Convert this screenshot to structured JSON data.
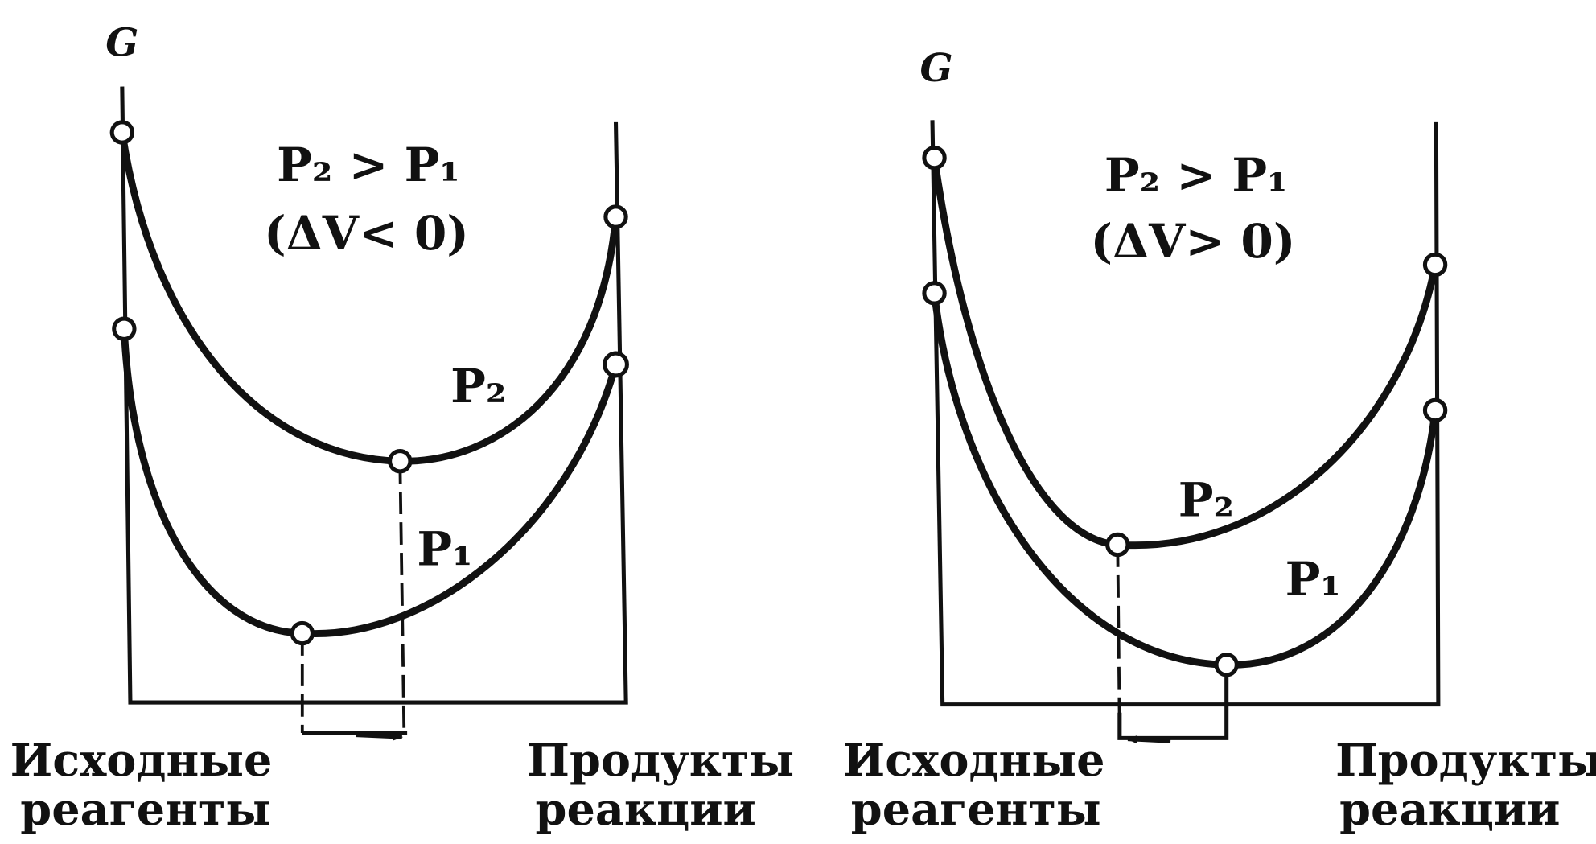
{
  "panels": [
    {
      "axis_label": "G",
      "condition": "P₂ > P₁",
      "volume_change": "(ΔV< 0)",
      "curve_labels": [
        "P₂",
        "P₁"
      ],
      "left_label": [
        "Исходные",
        "реагенты"
      ],
      "right_label": [
        "Продукты",
        "реакции"
      ]
    },
    {
      "axis_label": "G",
      "condition": "P₂ > P₁",
      "volume_change": "(ΔV> 0)",
      "curve_labels": [
        "P₂",
        "P₁"
      ],
      "left_label": [
        "Исходные",
        "реагенты"
      ],
      "right_label": [
        "Продукты",
        "реакции"
      ]
    }
  ]
}
